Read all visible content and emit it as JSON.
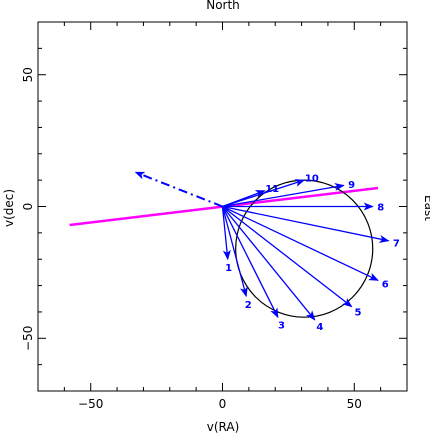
{
  "chart_data": {
    "type": "scatter",
    "title": "North",
    "side_label": "East",
    "xlabel": "v(RA)",
    "ylabel": "v(dec)",
    "xlim": [
      -70,
      70
    ],
    "ylim": [
      -70,
      70
    ],
    "xticks": [
      -50,
      0,
      50
    ],
    "yticks": [
      -50,
      0,
      50
    ],
    "xtick_labels": [
      "−50",
      "0",
      "50"
    ],
    "ytick_labels": [
      "−50",
      "0",
      "50"
    ],
    "origin": [
      0,
      0
    ],
    "vectors": [
      {
        "label": "1",
        "x": 2,
        "y": -20
      },
      {
        "label": "2",
        "x": 9,
        "y": -34
      },
      {
        "label": "3",
        "x": 21,
        "y": -42
      },
      {
        "label": "4",
        "x": 35,
        "y": -43
      },
      {
        "label": "5",
        "x": 49,
        "y": -38
      },
      {
        "label": "6",
        "x": 59,
        "y": -28
      },
      {
        "label": "7",
        "x": 63,
        "y": -13
      },
      {
        "label": "8",
        "x": 57,
        "y": 0
      },
      {
        "label": "9",
        "x": 46,
        "y": 8
      },
      {
        "label": "10",
        "x": 31,
        "y": 10
      },
      {
        "label": "11",
        "x": 16,
        "y": 6
      }
    ],
    "circle": {
      "cx": 31,
      "cy": -16,
      "r": 26
    },
    "dashdot_vector": {
      "x": -33,
      "y": 13
    },
    "magenta_line": {
      "x1": -58,
      "y1": -7,
      "x2": 59,
      "y2": 7
    },
    "colors": {
      "vectors": "#0000ff",
      "circle": "#000000",
      "line": "#ff00ff",
      "frame": "#000000"
    }
  }
}
